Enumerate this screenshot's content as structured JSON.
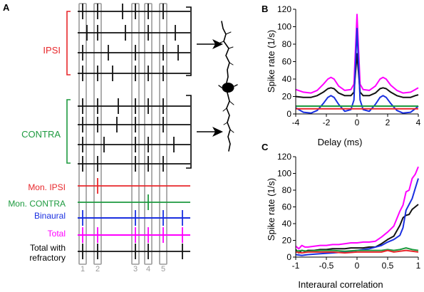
{
  "panels": {
    "a": "A",
    "b": "B",
    "c": "C"
  },
  "colors": {
    "ipsi": "#e8272b",
    "contra": "#1d9a3f",
    "binaural": "#1a2fe0",
    "total": "#ff00ff",
    "refractory": "#111111",
    "box": "#9a9a9a"
  },
  "panel_a": {
    "group_labels": {
      "ipsi": "IPSI",
      "contra": "CONTRA"
    },
    "row_labels": {
      "mon_ipsi": "Mon. IPSI",
      "mon_contra": "Mon. CONTRA",
      "binaural": "Binaural",
      "total": "Total",
      "refractory_1": "Total with",
      "refractory_2": "refractory"
    },
    "coincidence_numbers": [
      "1",
      "2",
      "3",
      "4",
      "5"
    ],
    "neuron_icon": "neuron-silhouette-icon"
  },
  "chart_data": [
    {
      "panel": "B",
      "type": "line",
      "xlabel": "Delay (ms)",
      "ylabel": "Spike rate (1/s)",
      "xlim": [
        -4,
        4
      ],
      "ylim": [
        0,
        120
      ],
      "xticks": [
        "-4",
        "-2",
        "0",
        "2",
        "4"
      ],
      "yticks": [
        "0",
        "20",
        "40",
        "60",
        "80",
        "100",
        "120"
      ],
      "grid": false,
      "series": [
        {
          "color": "#ff00ff",
          "x": [
            -4,
            -3.5,
            -3,
            -2.6,
            -2.2,
            -1.9,
            -1.7,
            -1.5,
            -1.2,
            -0.8,
            -0.4,
            -0.2,
            0,
            0.2,
            0.4,
            0.8,
            1.2,
            1.5,
            1.7,
            1.9,
            2.2,
            2.6,
            3,
            3.5,
            3.8,
            4
          ],
          "y": [
            28,
            25,
            24,
            27,
            34,
            40,
            42,
            40,
            32,
            27,
            28,
            34,
            114,
            34,
            28,
            27,
            32,
            40,
            42,
            40,
            33,
            27,
            24,
            25,
            28,
            30
          ]
        },
        {
          "color": "#111111",
          "x": [
            -4,
            -3.5,
            -3,
            -2.6,
            -2.2,
            -1.9,
            -1.7,
            -1.5,
            -1.2,
            -0.8,
            -0.4,
            -0.2,
            0,
            0.2,
            0.4,
            0.8,
            1.2,
            1.5,
            1.7,
            1.9,
            2.2,
            2.6,
            3,
            3.5,
            3.8,
            4
          ],
          "y": [
            20,
            19,
            19,
            21,
            25,
            29,
            30,
            29,
            24,
            21,
            21,
            25,
            69,
            25,
            21,
            21,
            24,
            29,
            30,
            29,
            25,
            21,
            19,
            19,
            21,
            22
          ]
        },
        {
          "color": "#1a2fe0",
          "x": [
            -4,
            -3.5,
            -3,
            -2.6,
            -2.2,
            -1.9,
            -1.7,
            -1.5,
            -1.2,
            -0.8,
            -0.4,
            -0.2,
            0,
            0.2,
            0.4,
            0.8,
            1.2,
            1.5,
            1.7,
            1.9,
            2.2,
            2.6,
            3,
            3.5,
            3.8,
            4
          ],
          "y": [
            7,
            2,
            1,
            4,
            12,
            19,
            21,
            19,
            11,
            3,
            5,
            16,
            98,
            16,
            5,
            3,
            11,
            19,
            21,
            19,
            12,
            4,
            1,
            2,
            6,
            9
          ]
        },
        {
          "color": "#1d9a3f",
          "x": [
            -4,
            4
          ],
          "y": [
            9,
            9
          ]
        },
        {
          "color": "#e8272b",
          "x": [
            -4,
            4
          ],
          "y": [
            6,
            6
          ]
        }
      ]
    },
    {
      "panel": "C",
      "type": "line",
      "xlabel": "Interaural correlation",
      "ylabel": "Spike rate (1/s)",
      "xlim": [
        -1,
        1
      ],
      "ylim": [
        0,
        120
      ],
      "xticks": [
        "-1",
        "-0.5",
        "0",
        "0.5",
        "1"
      ],
      "yticks": [
        "0",
        "20",
        "40",
        "60",
        "80",
        "100",
        "120"
      ],
      "grid": false,
      "series": [
        {
          "color": "#ff00ff",
          "x": [
            -1,
            -0.95,
            -0.9,
            -0.85,
            -0.8,
            -0.7,
            -0.6,
            -0.5,
            -0.4,
            -0.3,
            -0.2,
            -0.1,
            0,
            0.1,
            0.2,
            0.3,
            0.4,
            0.5,
            0.6,
            0.7,
            0.75,
            0.8,
            0.85,
            0.9,
            0.95,
            1
          ],
          "y": [
            13,
            10,
            14,
            12,
            12,
            13,
            14,
            14,
            15,
            15,
            16,
            17,
            17,
            18,
            18,
            19,
            24,
            30,
            37,
            55,
            62,
            78,
            80,
            94,
            99,
            108
          ]
        },
        {
          "color": "#111111",
          "x": [
            -1,
            -0.95,
            -0.9,
            -0.85,
            -0.8,
            -0.7,
            -0.6,
            -0.5,
            -0.4,
            -0.3,
            -0.2,
            -0.1,
            0,
            0.1,
            0.2,
            0.3,
            0.4,
            0.5,
            0.6,
            0.7,
            0.75,
            0.8,
            0.85,
            0.9,
            0.95,
            1
          ],
          "y": [
            9,
            5,
            8,
            7,
            8,
            8,
            9,
            9,
            10,
            10,
            10,
            11,
            11,
            11,
            12,
            12,
            16,
            21,
            25,
            38,
            47,
            50,
            51,
            57,
            60,
            63
          ]
        },
        {
          "color": "#1a2fe0",
          "x": [
            -1,
            -0.9,
            -0.8,
            -0.6,
            -0.4,
            -0.2,
            0,
            0.2,
            0.4,
            0.5,
            0.6,
            0.7,
            0.75,
            0.8,
            0.85,
            0.9,
            0.95,
            1
          ],
          "y": [
            3,
            2,
            3,
            4,
            5,
            6,
            8,
            10,
            14,
            18,
            21,
            26,
            35,
            56,
            63,
            70,
            82,
            94
          ]
        },
        {
          "color": "#1d9a3f",
          "x": [
            -1,
            -0.9,
            -0.8,
            -0.6,
            -0.4,
            -0.2,
            0,
            0.2,
            0.4,
            0.5,
            0.6,
            0.7,
            0.8,
            0.9,
            1
          ],
          "y": [
            7,
            8,
            7,
            8,
            8,
            7,
            8,
            8,
            8,
            9,
            8,
            9,
            11,
            9,
            8
          ]
        },
        {
          "color": "#e8272b",
          "x": [
            -1,
            -0.9,
            -0.8,
            -0.6,
            -0.4,
            -0.2,
            0,
            0.2,
            0.4,
            0.5,
            0.6,
            0.7,
            0.8,
            0.9,
            1
          ],
          "y": [
            6,
            5,
            6,
            6,
            6,
            5,
            6,
            6,
            6,
            8,
            6,
            7,
            8,
            7,
            6
          ]
        }
      ]
    }
  ]
}
